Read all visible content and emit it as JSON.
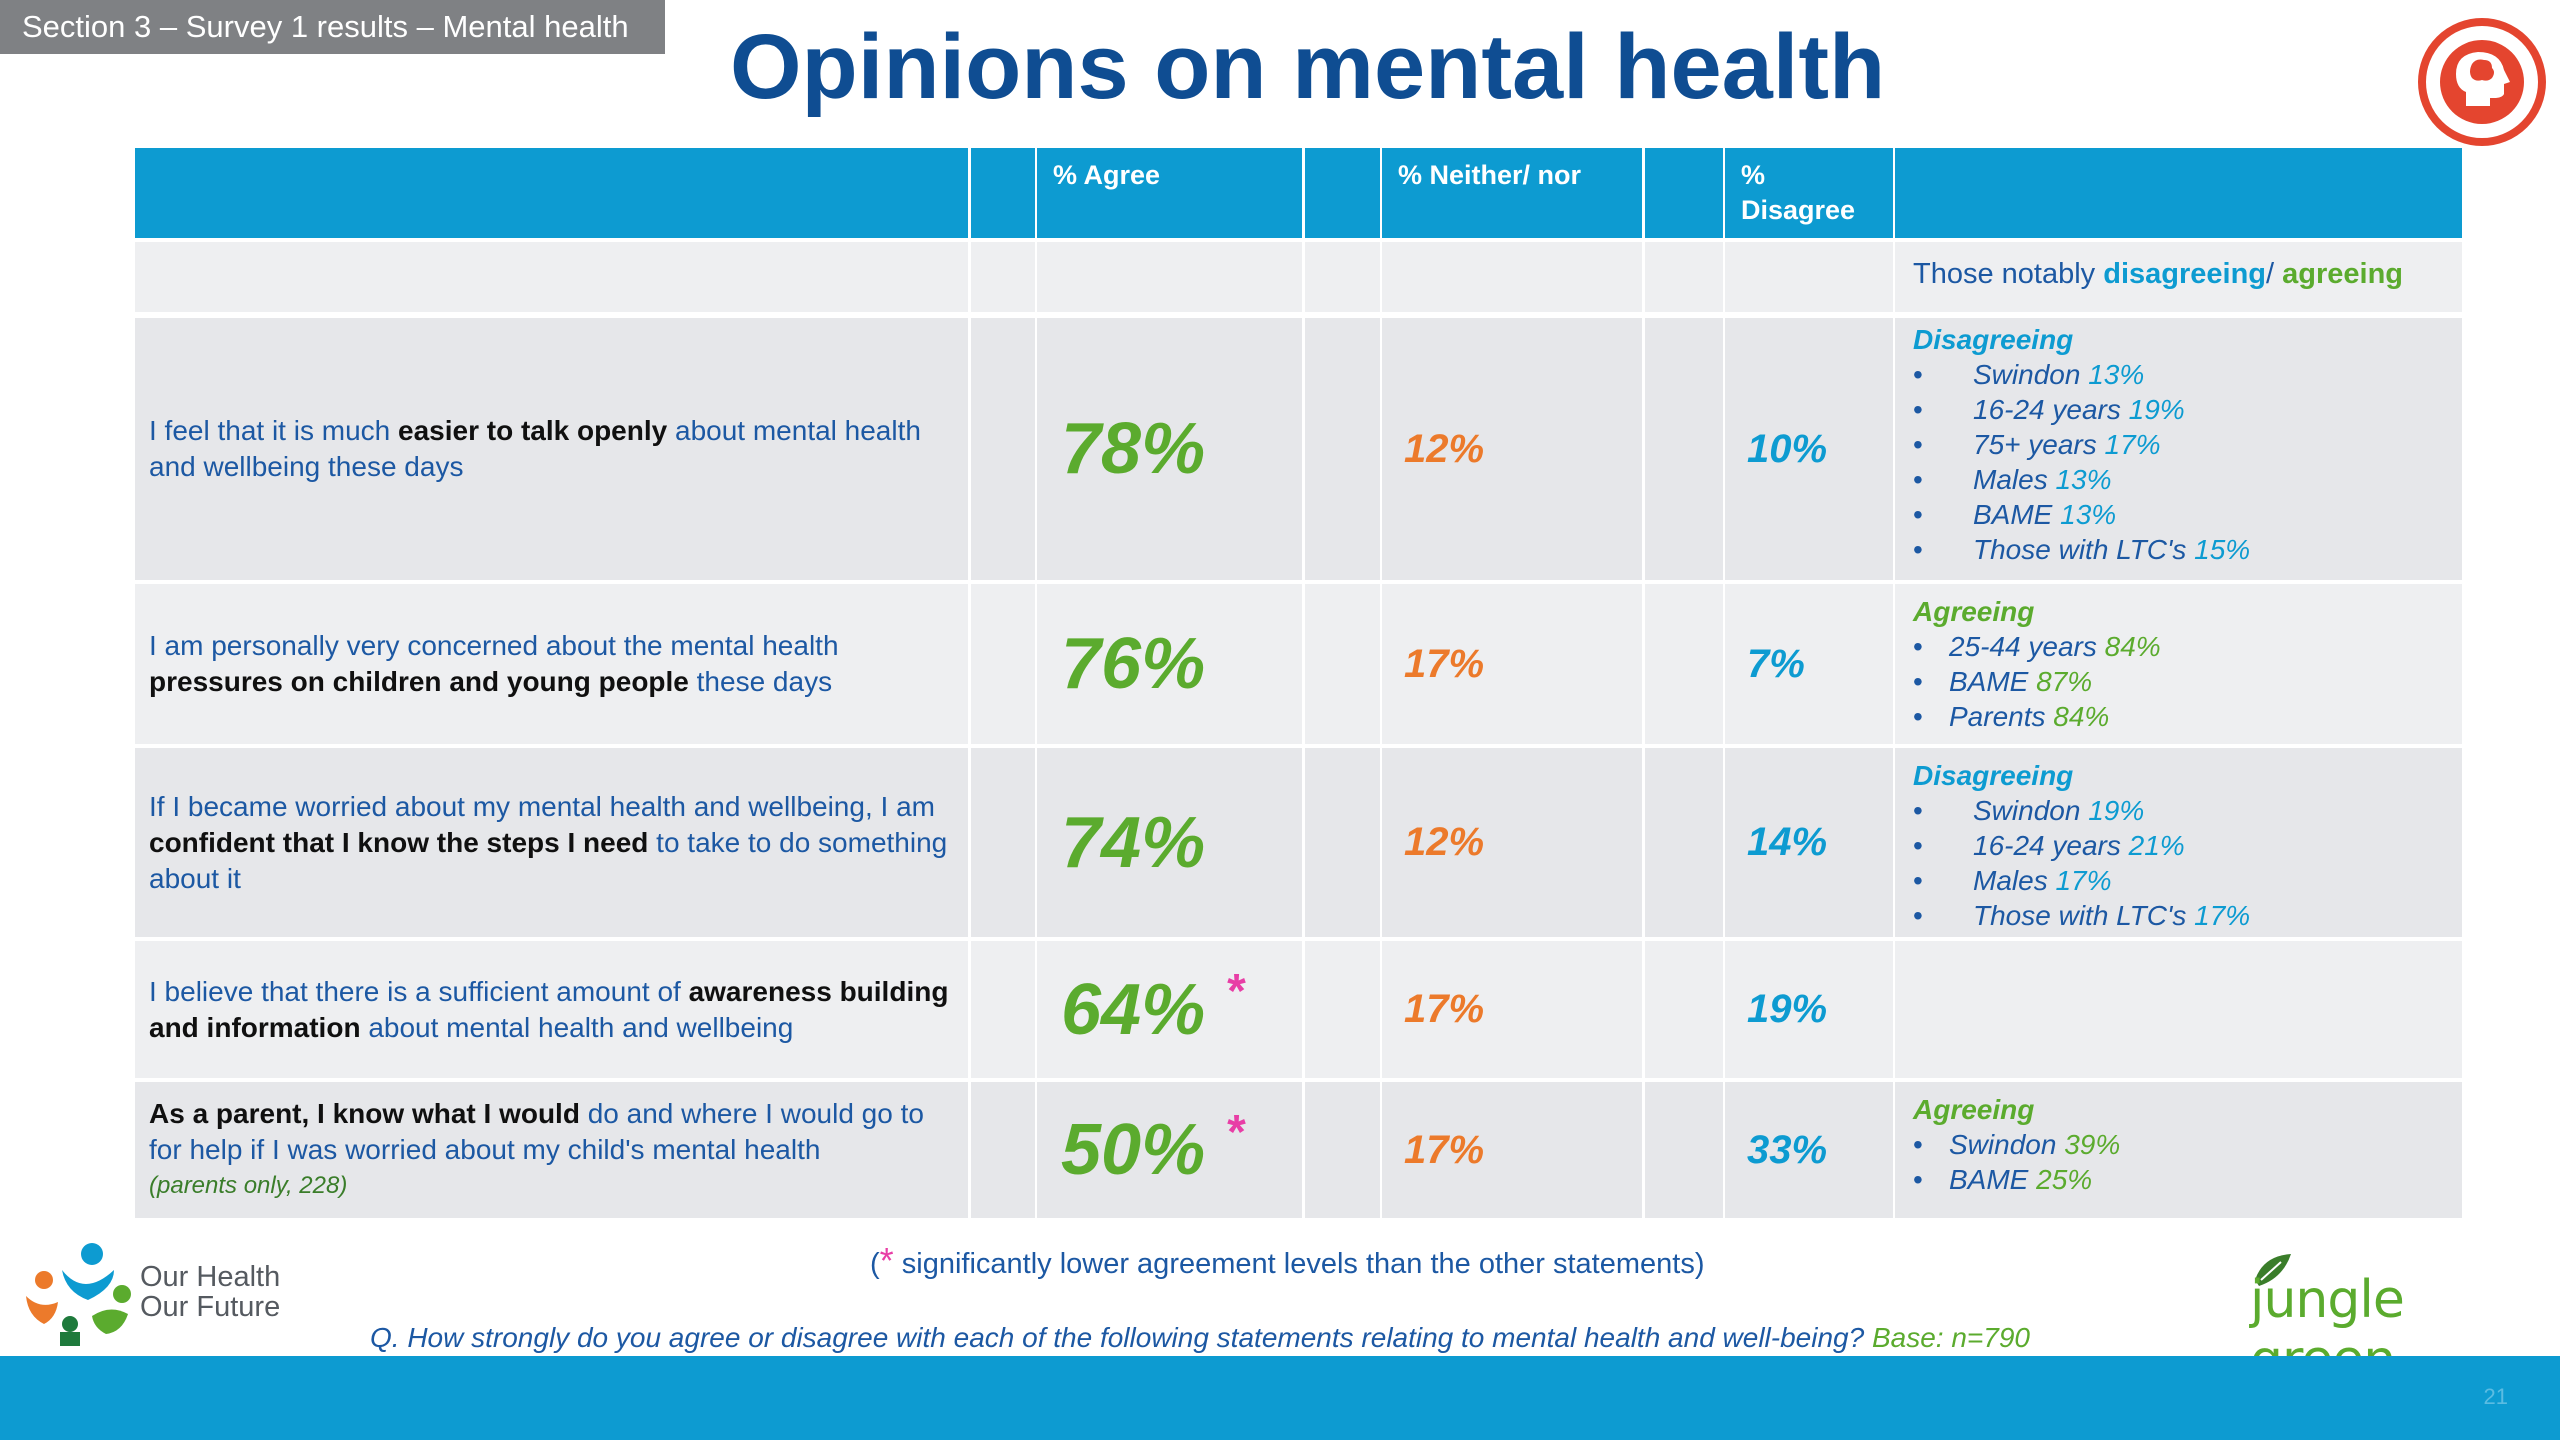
{
  "header": {
    "section": "Section 3 – Survey 1 results – Mental health",
    "title": "Opinions on mental health"
  },
  "icons": {
    "badge": "mental-health-head-icon"
  },
  "table": {
    "col_agree": "% Agree",
    "col_neither": "% Neither/ nor",
    "col_disagree_1": "%",
    "col_disagree_2": "Disagree",
    "notably": {
      "pre": "Those notably ",
      "dis": "disagreeing",
      "sep": "/ ",
      "agr": "agreeing"
    },
    "rows": [
      {
        "s1": "I feel that it is much ",
        "b1": "easier to talk openly",
        "s2": " about mental health and wellbeing these days",
        "b2": "",
        "s3": "",
        "note": "",
        "agree": "78%",
        "neither": "12%",
        "disagree": "10%",
        "star": "",
        "notes_head": "Disagreeing",
        "notes": [
          {
            "label": "Swindon",
            "value": "13%"
          },
          {
            "label": "16-24 years",
            "value": "19%"
          },
          {
            "label": "75+ years",
            "value": "17%"
          },
          {
            "label": "Males",
            "value": "13%"
          },
          {
            "label": "BAME",
            "value": "13%"
          },
          {
            "label": "Those with LTC's",
            "value": "15%"
          }
        ]
      },
      {
        "s1": "I am personally very concerned about the mental health ",
        "b1": "pressures on children and young people",
        "s2": " these days",
        "b2": "",
        "s3": "",
        "note": "",
        "agree": "76%",
        "neither": "17%",
        "disagree": "7%",
        "star": "",
        "notes_head": "Agreeing",
        "notes": [
          {
            "label": "25-44 years",
            "value": "84%"
          },
          {
            "label": "BAME",
            "value": "87%"
          },
          {
            "label": "Parents",
            "value": "84%"
          }
        ]
      },
      {
        "s1": "If I became worried about my mental health and wellbeing, I am ",
        "b1": "confident that I know the steps I need",
        "s2": " to take to do something about it",
        "b2": "",
        "s3": "",
        "note": "",
        "agree": "74%",
        "neither": "12%",
        "disagree": "14%",
        "star": "",
        "notes_head": "Disagreeing",
        "notes": [
          {
            "label": "Swindon",
            "value": "19%"
          },
          {
            "label": "16-24 years",
            "value": "21%"
          },
          {
            "label": "Males",
            "value": "17%"
          },
          {
            "label": "Those with LTC's",
            "value": "17%"
          }
        ]
      },
      {
        "s1": "I believe that there is a sufficient amount of ",
        "b1": "awareness building and information",
        "s2": " about mental health and wellbeing",
        "b2": "",
        "s3": "",
        "note": "",
        "agree": "64%",
        "neither": "17%",
        "disagree": "19%",
        "star": "*",
        "notes_head": "",
        "notes": []
      },
      {
        "s1": "",
        "b1": "As a parent, I know what I would",
        "s2": " do and where I would go to for help if I was worried about my child's mental health",
        "b2": "",
        "s3": "",
        "note": "(parents only, 228)",
        "agree": "50%",
        "neither": "17%",
        "disagree": "33%",
        "star": "*",
        "notes_head": "Agreeing",
        "notes": [
          {
            "label": "Swindon",
            "value": "39%"
          },
          {
            "label": "BAME",
            "value": "25%"
          }
        ]
      }
    ]
  },
  "footnote": {
    "open": "(",
    "star": "*",
    "text": " significantly lower agreement levels than the other statements)"
  },
  "question": {
    "text": "Q. How strongly do you agree or disagree with each of the following statements relating to mental health and well-being? ",
    "base": "Base: n=790"
  },
  "logos": {
    "left_line1": "Our Health",
    "left_line2": "Our Future",
    "right": "jungle green"
  },
  "page_number": "21",
  "colors": {
    "title": "#0f4d92",
    "header_blue": "#0d9bd1",
    "agree_green": "#5bab2e",
    "neither_orange": "#ec7a2b",
    "star_pink": "#e83ea6"
  }
}
